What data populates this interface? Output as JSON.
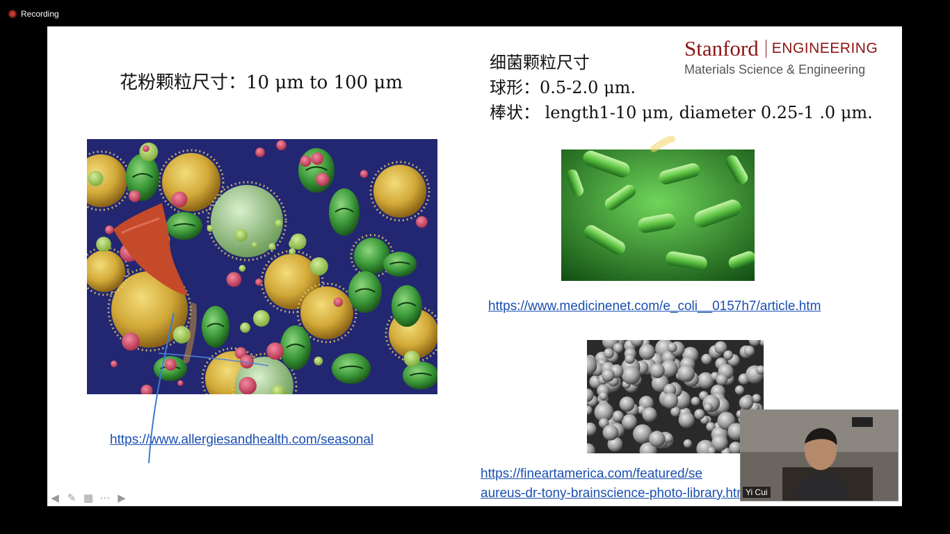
{
  "recording": {
    "label": "Recording"
  },
  "slide": {
    "pollen_title": "花粉颗粒尺寸：10 μm to 100 μm",
    "bacteria_title": "细菌颗粒尺寸",
    "bacteria_sphere": "球形：0.5-2.0 μm.",
    "bacteria_rod": "棒状：  length1-10 μm, diameter 0.25-1 .0 μm.",
    "logo": {
      "stanford": "Stanford",
      "engineering": "ENGINEERING",
      "department": "Materials Science & Engineering"
    },
    "links": {
      "pollen": "https://www.allergiesandhealth.com/seasonal",
      "ecoli": "https://www.medicinenet.com/e_coli__0157h7/article.htm",
      "fineart_line1": "https://fineartamerica.com/featured/se",
      "fineart_line2": "aureus-dr-tony-brainscience-photo-library.html"
    },
    "images": {
      "pollen": "pollen-sem-image",
      "ecoli": "e-coli-bacteria-image",
      "staph": "staphylococcus-sem-image"
    }
  },
  "nav_icons": [
    "arrow-left-icon",
    "pen-icon",
    "slides-icon",
    "more-icon",
    "arrow-right-icon"
  ],
  "video": {
    "participant_name": "Yi Cui"
  },
  "colors": {
    "stanford_red": "#8c1515",
    "link": "#1a4fb0",
    "pen_ink": "#3a7bd5"
  }
}
